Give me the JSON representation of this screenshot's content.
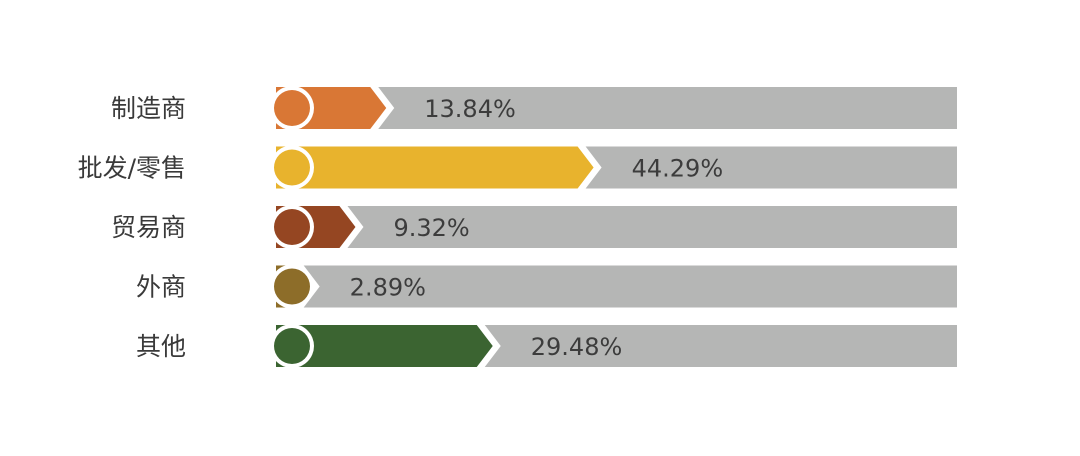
{
  "chart_data": {
    "type": "bar",
    "orientation": "horizontal",
    "categories": [
      "制造商",
      "批发/零售",
      "贸易商",
      "外商",
      "其他"
    ],
    "values": [
      13.84,
      44.29,
      9.32,
      2.89,
      29.48
    ],
    "value_labels": [
      "13.84%",
      "44.29%",
      "9.32%",
      "2.89%",
      "29.48%"
    ],
    "unit": "%",
    "xlim": [
      0,
      100
    ],
    "colors": [
      "#d97735",
      "#e8b32d",
      "#954622",
      "#8d6d29",
      "#3b6431"
    ],
    "track_color": "#b5b6b5",
    "grid": false,
    "legend": "none"
  }
}
